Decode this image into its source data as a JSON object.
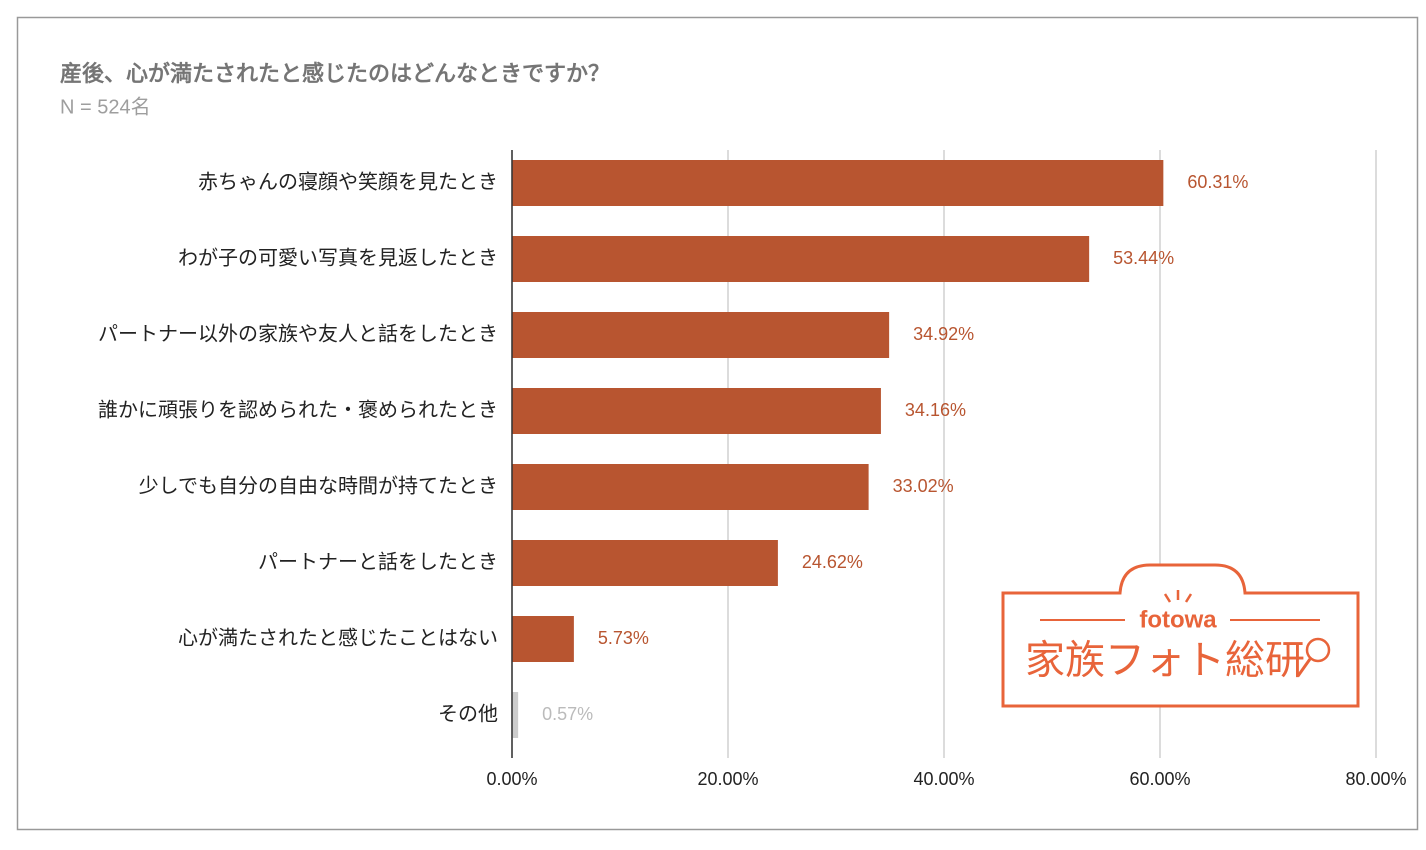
{
  "chart_data": {
    "type": "hbar",
    "title": "産後、心が満たされたと感じたのはどんなときですか？",
    "subtitle": "N = 524名",
    "categories": [
      "赤ちゃんの寝顔や笑顔を見たとき",
      "わが子の可愛い写真を見返したとき",
      "パートナー以外の家族や友人と話をしたとき",
      "誰かに頑張りを認められた・褒められたとき",
      "少しでも自分の自由な時間が持てたとき",
      "パートナーと話をしたとき",
      "心が満たされたと感じたことはない",
      "その他"
    ],
    "values": [
      60.31,
      53.44,
      34.92,
      34.16,
      33.02,
      24.62,
      5.73,
      0.57
    ],
    "value_labels": [
      "60.31%",
      "53.44%",
      "34.92%",
      "34.16%",
      "33.02%",
      "24.62%",
      "5.73%",
      "0.57%"
    ],
    "colors": [
      "#b85530",
      "#b85530",
      "#b85530",
      "#b85530",
      "#b85530",
      "#b85530",
      "#b85530",
      "#cccccc"
    ],
    "label_colors": [
      "#b85530",
      "#b85530",
      "#b85530",
      "#b85530",
      "#b85530",
      "#b85530",
      "#b85530",
      "#bbbbbb"
    ],
    "xlim": [
      0,
      80
    ],
    "xticks": [
      {
        "value": 0,
        "label": "0.00%"
      },
      {
        "value": 20,
        "label": "20.00%"
      },
      {
        "value": 40,
        "label": "40.00%"
      },
      {
        "value": 60,
        "label": "60.00%"
      },
      {
        "value": 80,
        "label": "80.00%"
      }
    ],
    "grid": true
  },
  "logo": {
    "brand": "fotowa",
    "text": "家族フォト総研"
  }
}
